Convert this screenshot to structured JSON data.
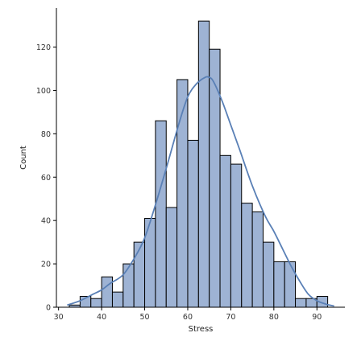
{
  "chart_data": {
    "type": "bar",
    "subtype": "histogram-with-kde",
    "title": "",
    "xlabel": "Stress",
    "ylabel": "Count",
    "xlim": [
      29.5,
      96.5
    ],
    "ylim": [
      0,
      138
    ],
    "x_ticks": [
      30,
      40,
      50,
      60,
      70,
      80,
      90
    ],
    "y_ticks": [
      0,
      20,
      40,
      60,
      80,
      100,
      120
    ],
    "grid": false,
    "legend": "none",
    "bins": [
      {
        "x0": 32.5,
        "x1": 35.0,
        "count": 1
      },
      {
        "x0": 35.0,
        "x1": 37.5,
        "count": 5
      },
      {
        "x0": 37.5,
        "x1": 40.0,
        "count": 4
      },
      {
        "x0": 40.0,
        "x1": 42.5,
        "count": 14
      },
      {
        "x0": 42.5,
        "x1": 45.0,
        "count": 7
      },
      {
        "x0": 45.0,
        "x1": 47.5,
        "count": 20
      },
      {
        "x0": 47.5,
        "x1": 50.0,
        "count": 30
      },
      {
        "x0": 50.0,
        "x1": 52.5,
        "count": 41
      },
      {
        "x0": 52.5,
        "x1": 55.0,
        "count": 86
      },
      {
        "x0": 55.0,
        "x1": 57.5,
        "count": 46
      },
      {
        "x0": 57.5,
        "x1": 60.0,
        "count": 105
      },
      {
        "x0": 60.0,
        "x1": 62.5,
        "count": 77
      },
      {
        "x0": 62.5,
        "x1": 65.0,
        "count": 132
      },
      {
        "x0": 65.0,
        "x1": 67.5,
        "count": 119
      },
      {
        "x0": 67.5,
        "x1": 70.0,
        "count": 70
      },
      {
        "x0": 70.0,
        "x1": 72.5,
        "count": 66
      },
      {
        "x0": 72.5,
        "x1": 75.0,
        "count": 48
      },
      {
        "x0": 75.0,
        "x1": 77.5,
        "count": 44
      },
      {
        "x0": 77.5,
        "x1": 80.0,
        "count": 30
      },
      {
        "x0": 80.0,
        "x1": 82.5,
        "count": 21
      },
      {
        "x0": 82.5,
        "x1": 85.0,
        "count": 21
      },
      {
        "x0": 85.0,
        "x1": 87.5,
        "count": 4
      },
      {
        "x0": 87.5,
        "x1": 90.0,
        "count": 4
      },
      {
        "x0": 90.0,
        "x1": 92.5,
        "count": 5
      }
    ],
    "kde": {
      "x": [
        32,
        35,
        38,
        40,
        42,
        45,
        48,
        50,
        52,
        55,
        58,
        60,
        62,
        64,
        65,
        66,
        68,
        70,
        72,
        75,
        78,
        80,
        82,
        84,
        86,
        88,
        90,
        92,
        94
      ],
      "y": [
        1,
        3,
        6,
        8,
        11,
        15,
        24,
        32,
        44,
        64,
        85,
        97,
        103,
        106,
        106,
        104,
        95,
        84,
        73,
        56,
        42,
        35,
        27,
        19,
        12,
        6,
        3,
        1.5,
        0.5
      ]
    },
    "colors": {
      "bar_fill": "#9eb3d4",
      "bar_edge": "#000000",
      "kde_line": "#5a80b6"
    }
  }
}
